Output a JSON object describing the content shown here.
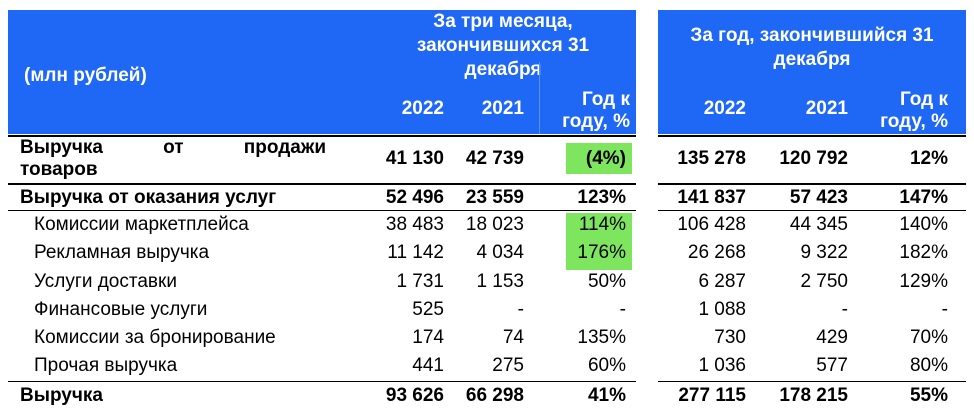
{
  "header": {
    "units": "(млн рублей)",
    "quarter": {
      "title_lines": [
        "За три месяца,",
        "закончившихся 31",
        "декабря"
      ],
      "col_2022": "2022",
      "col_2021": "2021",
      "col_yoy_lines": [
        "Год к",
        "году, %"
      ]
    },
    "year": {
      "title_lines": [
        "За год, закончившийся 31",
        "декабря"
      ],
      "col_2022": "2022",
      "col_2021": "2021",
      "col_yoy_lines": [
        "Год к",
        "году, %"
      ]
    }
  },
  "rows": [
    {
      "label_words": [
        "Выручка",
        "от",
        "продажи"
      ],
      "label_line2": "товаров",
      "q2022": "41 130",
      "q2021": "42 739",
      "qyoy": "(4%)",
      "y2022": "135 278",
      "y2021": "120 792",
      "yyoy": "12%",
      "bold": true,
      "highlight": true
    },
    {
      "label": "Выручка от оказания услуг",
      "q2022": "52 496",
      "q2021": "23 559",
      "qyoy": "123%",
      "y2022": "141 837",
      "y2021": "57 423",
      "yyoy": "147%",
      "bold": true,
      "highlight": false
    },
    {
      "label": "Комиссии маркетплейса",
      "q2022": "38 483",
      "q2021": "18 023",
      "qyoy": "114%",
      "y2022": "106 428",
      "y2021": "44 345",
      "yyoy": "140%",
      "bold": false,
      "highlight": true
    },
    {
      "label": "Рекламная выручка",
      "q2022": "11 142",
      "q2021": "4 034",
      "qyoy": "176%",
      "y2022": "26 268",
      "y2021": "9 322",
      "yyoy": "182%",
      "bold": false,
      "highlight": true
    },
    {
      "label": "Услуги доставки",
      "q2022": "1 731",
      "q2021": "1 153",
      "qyoy": "50%",
      "y2022": "6 287",
      "y2021": "2 750",
      "yyoy": "129%",
      "bold": false,
      "highlight": false
    },
    {
      "label": "Финансовые услуги",
      "q2022": "525",
      "q2021": "-",
      "qyoy": "-",
      "y2022": "1 088",
      "y2021": "-",
      "yyoy": "-",
      "bold": false,
      "highlight": false
    },
    {
      "label": "Комиссии за бронирование",
      "q2022": "174",
      "q2021": "74",
      "qyoy": "135%",
      "y2022": "730",
      "y2021": "429",
      "yyoy": "70%",
      "bold": false,
      "highlight": false
    },
    {
      "label": "Прочая выручка",
      "q2022": "441",
      "q2021": "275",
      "qyoy": "60%",
      "y2022": "1 036",
      "y2021": "577",
      "yyoy": "80%",
      "bold": false,
      "highlight": false
    },
    {
      "label": "Выручка",
      "q2022": "93 626",
      "q2021": "66 298",
      "qyoy": "41%",
      "y2022": "277 115",
      "y2021": "178 215",
      "yyoy": "55%",
      "bold": true,
      "highlight": false
    }
  ],
  "colors": {
    "header_bg": "#1f67f5",
    "header_text": "#ffffff",
    "highlight": "#7ee55e",
    "rule": "#000000"
  }
}
